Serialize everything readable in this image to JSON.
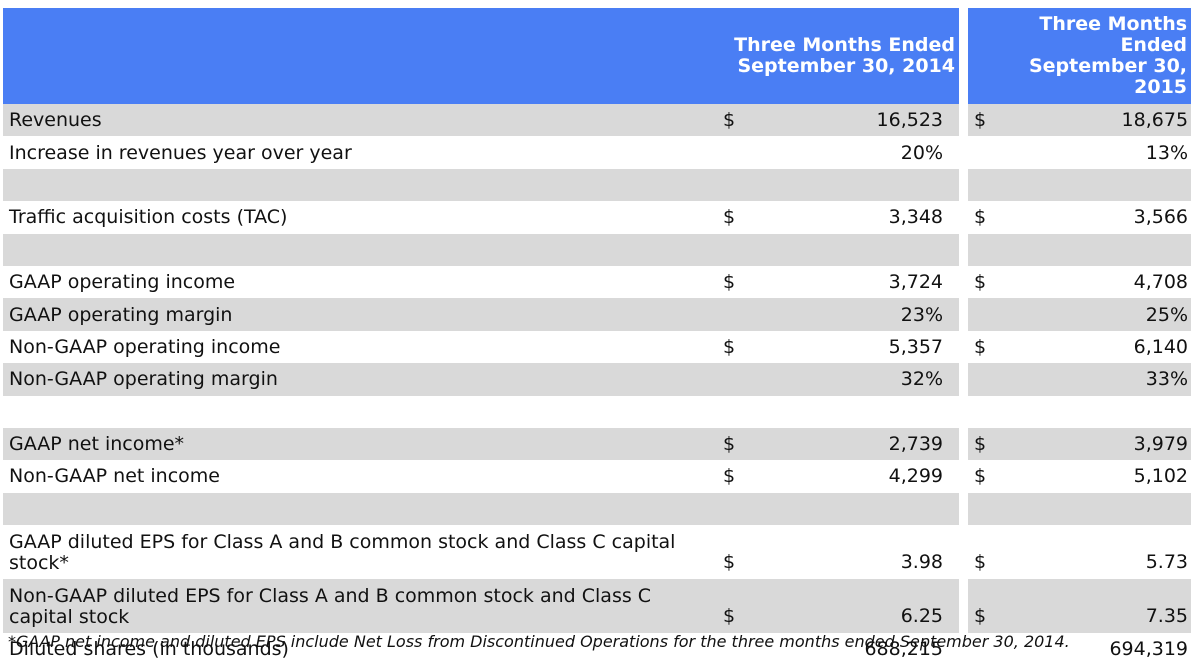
{
  "table": {
    "headers": {
      "col_2014_line1": "Three Months Ended",
      "col_2014_line2": "September 30, 2014",
      "col_2015_line1": "Three Months Ended",
      "col_2015_line2": "September 30, 2015"
    },
    "rows": [
      {
        "label": "Revenues",
        "cur_2014": "$",
        "val_2014": "16,523",
        "cur_2015": "$",
        "val_2015": "18,675",
        "style": "shade"
      },
      {
        "label": "Increase in revenues year over year",
        "cur_2014": "",
        "val_2014": "20%",
        "cur_2015": "",
        "val_2015": "13%",
        "style": "white"
      },
      {
        "label": "",
        "cur_2014": "",
        "val_2014": "",
        "cur_2015": "",
        "val_2015": "",
        "style": "shade"
      },
      {
        "label": "Traffic acquisition costs (TAC)",
        "cur_2014": "$",
        "val_2014": "3,348",
        "cur_2015": "$",
        "val_2015": "3,566",
        "style": "white"
      },
      {
        "label": "",
        "cur_2014": "",
        "val_2014": "",
        "cur_2015": "",
        "val_2015": "",
        "style": "shade"
      },
      {
        "label": "GAAP operating income",
        "cur_2014": "$",
        "val_2014": "3,724",
        "cur_2015": "$",
        "val_2015": "4,708",
        "style": "white"
      },
      {
        "label": "GAAP operating margin",
        "cur_2014": "",
        "val_2014": "23%",
        "cur_2015": "",
        "val_2015": "25%",
        "style": "shade"
      },
      {
        "label": "Non-GAAP operating income",
        "cur_2014": "$",
        "val_2014": "5,357",
        "cur_2015": "$",
        "val_2015": "6,140",
        "style": "white"
      },
      {
        "label": "Non-GAAP operating margin",
        "cur_2014": "",
        "val_2014": "32%",
        "cur_2015": "",
        "val_2015": "33%",
        "style": "shade"
      },
      {
        "label": "",
        "cur_2014": "",
        "val_2014": "",
        "cur_2015": "",
        "val_2015": "",
        "style": "white"
      },
      {
        "label": "GAAP net income*",
        "cur_2014": "$",
        "val_2014": "2,739",
        "cur_2015": "$",
        "val_2015": "3,979",
        "style": "shade"
      },
      {
        "label": "Non-GAAP net income",
        "cur_2014": "$",
        "val_2014": "4,299",
        "cur_2015": "$",
        "val_2015": "5,102",
        "style": "white"
      },
      {
        "label": "",
        "cur_2014": "",
        "val_2014": "",
        "cur_2015": "",
        "val_2015": "",
        "style": "shade"
      },
      {
        "label": "GAAP diluted EPS for Class A and B common stock and Class C capital stock*",
        "cur_2014": "$",
        "val_2014": "3.98",
        "cur_2015": "$",
        "val_2015": "5.73",
        "style": "white tall"
      },
      {
        "label": "Non-GAAP diluted EPS for Class A and B common stock and Class C capital stock",
        "cur_2014": "$",
        "val_2014": "6.25",
        "cur_2015": "$",
        "val_2015": "7.35",
        "style": "shade tall"
      },
      {
        "label": "Diluted shares (in thousands)",
        "cur_2014": "",
        "val_2014": "688,215",
        "cur_2015": "",
        "val_2015": "694,319",
        "style": "white"
      }
    ]
  },
  "footnote": "*GAAP net income and diluted EPS include Net Loss from Discontinued Operations for the three months ended September 30, 2014.",
  "colors": {
    "header_bg": "#4a7ef4",
    "header_text": "#ffffff",
    "shade_row": "#d9d9d9"
  }
}
